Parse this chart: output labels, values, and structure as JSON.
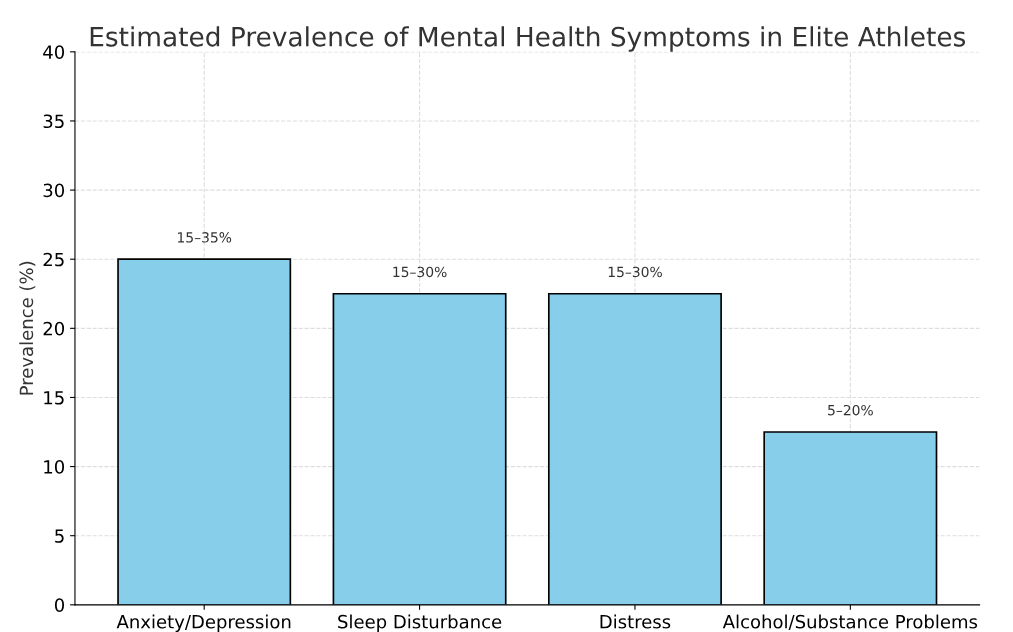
{
  "chart_data": {
    "type": "bar",
    "title": "Estimated Prevalence of Mental Health Symptoms in Elite Athletes",
    "ylabel": "Prevalence (%)",
    "categories": [
      "Anxiety/Depression",
      "Sleep Disturbance",
      "Distress",
      "Alcohol/Substance Problems"
    ],
    "values": [
      25,
      22.5,
      22.5,
      12.5
    ],
    "annotations": [
      {
        "text": "15–35%",
        "x": "Anxiety/Depression",
        "y": 25
      },
      {
        "text": "15–30%",
        "x": "Sleep Disturbance",
        "y": 22.5
      },
      {
        "text": "15–30%",
        "x": "Distress",
        "y": 22.5
      },
      {
        "text": "5–20%",
        "x": "Alcohol/Substance Problems",
        "y": 12.5
      }
    ],
    "color": "#87ceeb",
    "ylim": [
      0,
      40
    ],
    "yticks": [
      0,
      5,
      10,
      15,
      20,
      25,
      30,
      35,
      40
    ],
    "grid": true
  }
}
